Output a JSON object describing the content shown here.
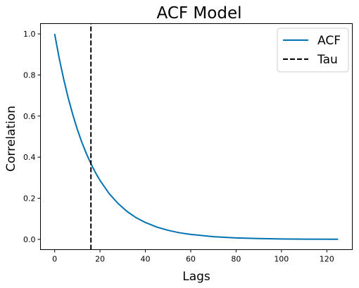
{
  "chart_data": {
    "type": "line",
    "title": "ACF Model",
    "xlabel": "Lags",
    "ylabel": "Correlation",
    "xlim": [
      -6.25,
      131.25
    ],
    "ylim": [
      -0.05,
      1.05
    ],
    "xticks": [
      0,
      20,
      40,
      60,
      80,
      100,
      120
    ],
    "yticks": [
      0.0,
      0.2,
      0.4,
      0.6,
      0.8,
      1.0
    ],
    "grid": false,
    "legend": "top-right",
    "series": [
      {
        "name": "ACF",
        "color": "#0072b2",
        "style": "solid",
        "x": [
          0,
          2,
          4,
          6,
          8,
          10,
          12,
          14,
          16,
          18,
          20,
          24,
          28,
          32,
          36,
          40,
          45,
          50,
          55,
          60,
          70,
          80,
          90,
          100,
          110,
          125
        ],
        "y": [
          1.0,
          0.882,
          0.779,
          0.687,
          0.607,
          0.535,
          0.472,
          0.417,
          0.368,
          0.325,
          0.287,
          0.223,
          0.174,
          0.135,
          0.105,
          0.082,
          0.06,
          0.044,
          0.032,
          0.024,
          0.013,
          0.007,
          0.004,
          0.002,
          0.001,
          0.0004
        ]
      },
      {
        "name": "Tau",
        "color": "#000000",
        "style": "dashed",
        "x": [
          16,
          16
        ],
        "y": [
          -0.05,
          1.05
        ]
      }
    ]
  }
}
